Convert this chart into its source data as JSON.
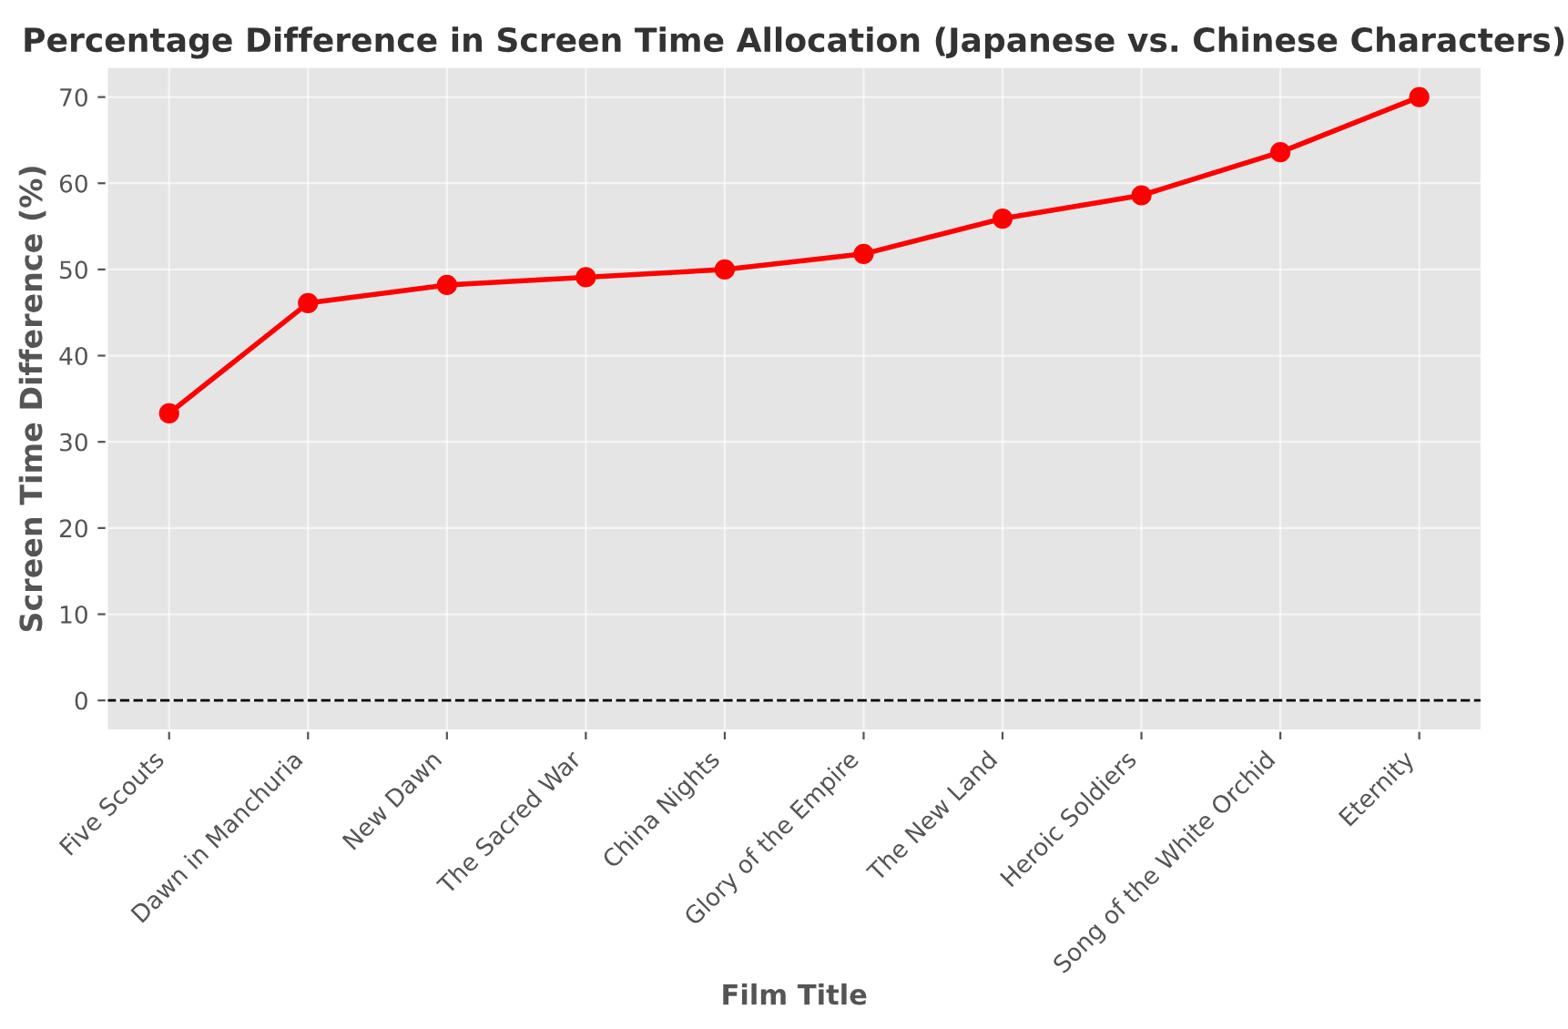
{
  "chart_data": {
    "type": "line",
    "title": "Percentage Difference in Screen Time Allocation (Japanese vs. Chinese Characters)",
    "xlabel": "Film Title",
    "ylabel": "Screen Time Difference (%)",
    "categories": [
      "Five Scouts",
      "Dawn in Manchuria",
      "New Dawn",
      "The Sacred War",
      "China Nights",
      "Glory of the Empire",
      "The New Land",
      "Heroic Soldiers",
      "Song of the White Orchid",
      "Eternity"
    ],
    "series": [
      {
        "color": "#ff0000",
        "values": [
          33.3,
          46.1,
          48.2,
          49.1,
          50.0,
          51.8,
          55.9,
          58.6,
          63.6,
          70.0
        ]
      }
    ],
    "ylim": [
      -3.5,
      73.5
    ],
    "yticks": [
      0,
      10,
      20,
      30,
      40,
      50,
      60,
      70
    ],
    "grid": true,
    "marker": "circle",
    "line_style": "solid",
    "ref_lines": [
      {
        "axis": "y",
        "value": 0,
        "color": "#000000",
        "line_style": "dashed"
      }
    ]
  }
}
